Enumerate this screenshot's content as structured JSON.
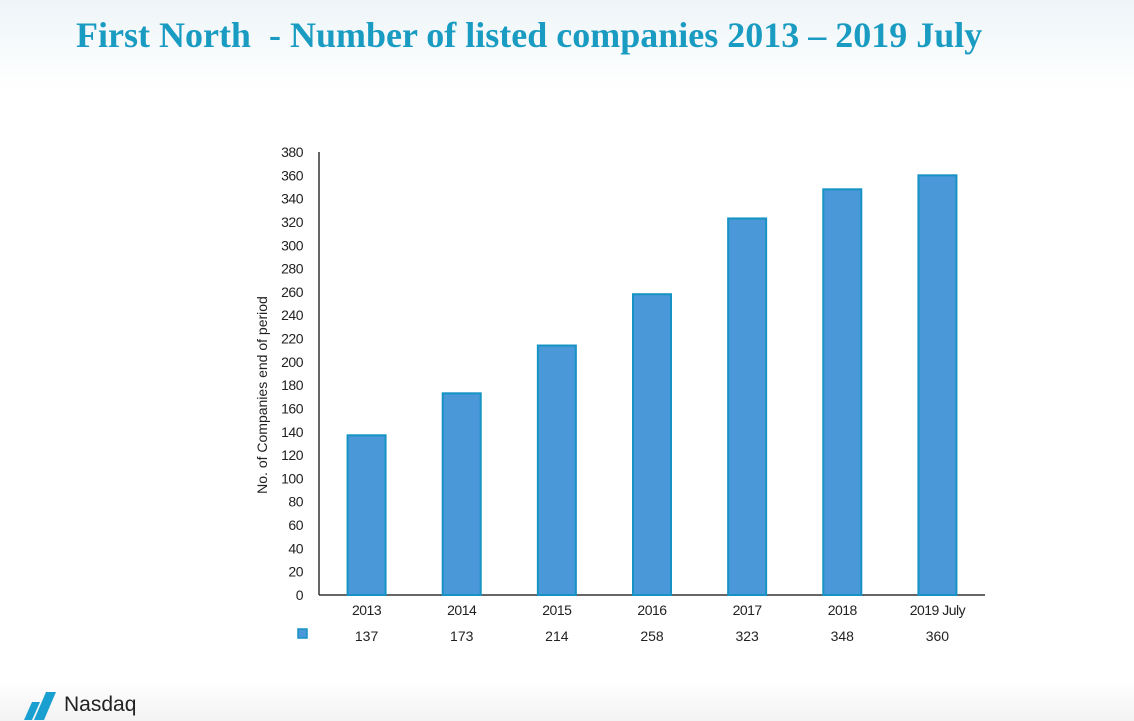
{
  "title": "First North  - Number of listed companies 2013 – 2019 July",
  "logo_text": "Nasdaq",
  "chart_data": {
    "type": "bar",
    "title": "First North  - Number of listed companies 2013 – 2019 July",
    "categories": [
      "2013",
      "2014",
      "2015",
      "2016",
      "2017",
      "2018",
      "2019 July"
    ],
    "values": [
      137,
      173,
      214,
      258,
      323,
      348,
      360
    ],
    "xlabel": "",
    "ylabel": "No. of Companies end of period",
    "ylim": [
      0,
      380
    ],
    "yticks": [
      0,
      20,
      40,
      60,
      80,
      100,
      120,
      140,
      160,
      180,
      200,
      220,
      240,
      260,
      280,
      300,
      320,
      340,
      360,
      380
    ],
    "grid": false,
    "legend": "data-table-below",
    "colors": {
      "bar": "#4a98d8",
      "bar_border": "#1593c4",
      "title": "#1a9cc2"
    }
  }
}
